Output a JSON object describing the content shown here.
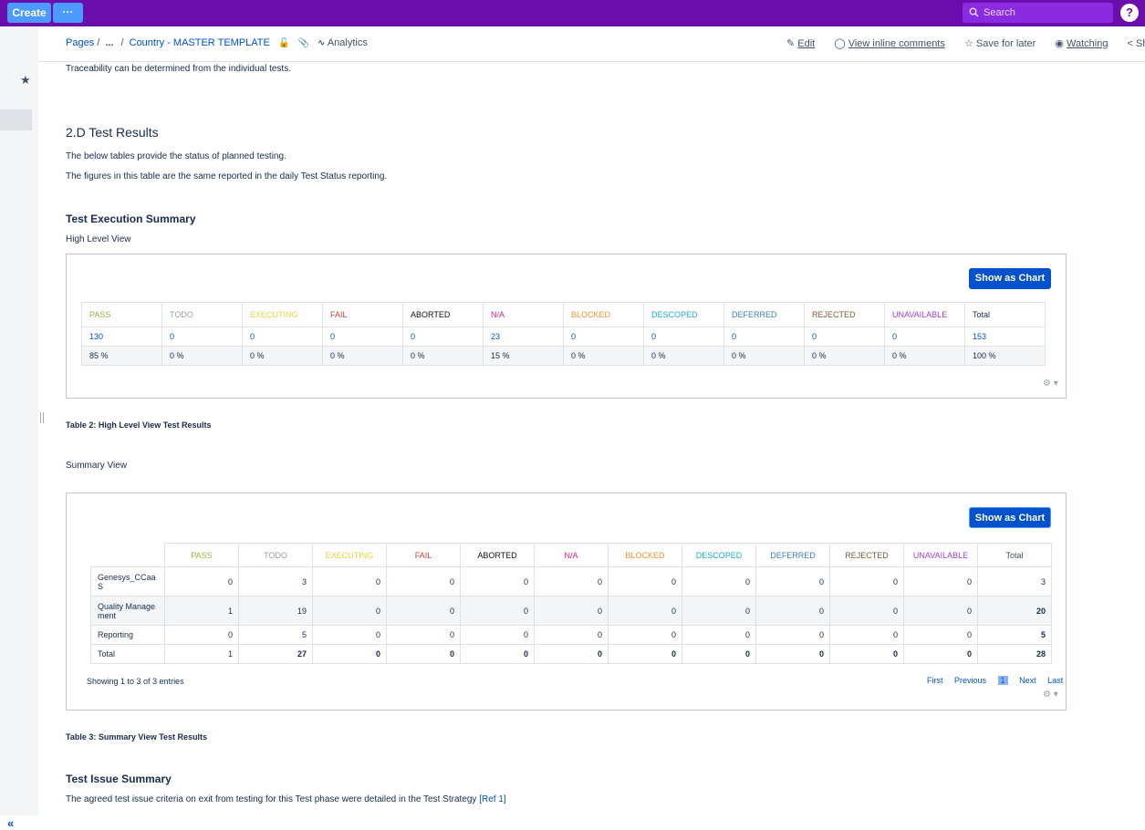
{
  "topbar": {
    "create_label": "Create",
    "more_label": "···",
    "search_placeholder": "Search",
    "help_label": "?"
  },
  "breadcrumb": {
    "pages": "Pages",
    "ellipsis": "...",
    "current": "Country - MASTER TEMPLATE",
    "analytics": "Analytics"
  },
  "actions": {
    "edit": "Edit",
    "inline_comments": "View inline comments",
    "save_later": "Save for later",
    "watching": "Watching",
    "share": "Sh"
  },
  "content": {
    "traceability": "Traceability can be determined from the individual tests.",
    "section_title": "2.D Test Results",
    "intro_1": "The below tables provide the status of planned testing.",
    "intro_2": "The figures in this table are the same reported in the daily Test Status reporting.",
    "exec_summary_title": "Test Execution Summary",
    "high_level_label": "High Level View",
    "table2_caption": "Table 2: High Level View Test Results",
    "summary_view_label": "Summary View",
    "table3_caption": "Table 3: Summary View Test Results",
    "issue_summary_title": "Test Issue Summary",
    "issue_text": "The agreed test issue criteria on exit from testing for this Test phase were detailed in the Test Strategy",
    "issue_ref": "[Ref 1]",
    "show_chart_label": "Show as Chart"
  },
  "status_colors": {
    "PASS": "#8fbc3f",
    "TODO": "#97a0af",
    "EXECUTING": "#f0d040",
    "FAIL": "#d04437",
    "ABORTED": "#111111",
    "N/A": "#e0218a",
    "BLOCKED": "#f79232",
    "DESCOPED": "#1daeca",
    "DEFERRED": "#3b7fc4",
    "REJECTED": "#815b3a",
    "UNAVAILABLE": "#a23ee0",
    "Total": "#172b4d"
  },
  "high_level_table": {
    "headers": [
      "PASS",
      "TODO",
      "EXECUTING",
      "FAIL",
      "ABORTED",
      "N/A",
      "BLOCKED",
      "DESCOPED",
      "DEFERRED",
      "REJECTED",
      "UNAVAILABLE",
      "Total"
    ],
    "counts": [
      "130",
      "0",
      "0",
      "0",
      "0",
      "23",
      "0",
      "0",
      "0",
      "0",
      "0",
      "153"
    ],
    "percents": [
      "85 %",
      "0 %",
      "0 %",
      "0 %",
      "0 %",
      "15 %",
      "0 %",
      "0 %",
      "0 %",
      "0 %",
      "0 %",
      "100 %"
    ]
  },
  "summary_table": {
    "headers": [
      "PASS",
      "TODO",
      "EXECUTING",
      "FAIL",
      "ABORTED",
      "N/A",
      "BLOCKED",
      "DESCOPED",
      "DEFERRED",
      "REJECTED",
      "UNAVAILABLE",
      "Total"
    ],
    "rows": [
      {
        "label": "Genesys_CCaaS",
        "label_l1": "Genesys_CCaa",
        "label_l2": "S",
        "values": [
          "0",
          "3",
          "0",
          "0",
          "0",
          "0",
          "0",
          "0",
          "0",
          "0",
          "0",
          "3"
        ]
      },
      {
        "label": "Quality Management",
        "label_l1": "Quality Manage",
        "label_l2": "ment",
        "values": [
          "1",
          "19",
          "0",
          "0",
          "0",
          "0",
          "0",
          "0",
          "0",
          "0",
          "0",
          "20"
        ]
      },
      {
        "label": "Reporting",
        "label_l1": "Reporting",
        "label_l2": "",
        "values": [
          "0",
          "5",
          "0",
          "0",
          "0",
          "0",
          "0",
          "0",
          "0",
          "0",
          "0",
          "5"
        ]
      },
      {
        "label": "Total",
        "label_l1": "Total",
        "label_l2": "",
        "values": [
          "1",
          "27",
          "0",
          "0",
          "0",
          "0",
          "0",
          "0",
          "0",
          "0",
          "0",
          "28"
        ]
      }
    ],
    "entries_text": "Showing 1 to 3 of 3 entries",
    "pager": {
      "first": "First",
      "previous": "Previous",
      "current": "1",
      "next": "Next",
      "last": "Last"
    }
  }
}
